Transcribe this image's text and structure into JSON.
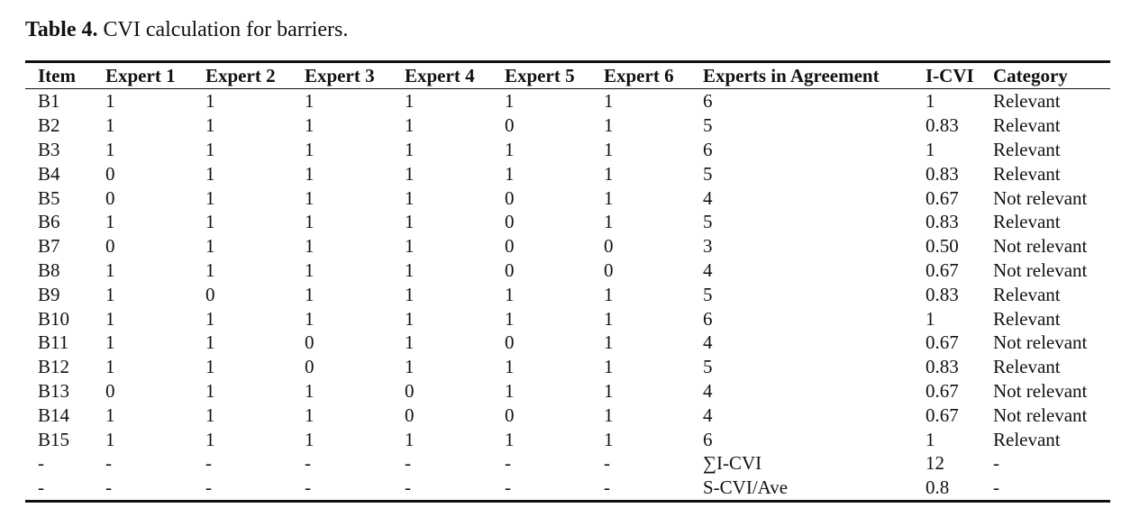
{
  "table_caption": {
    "label": "Table 4.",
    "text": "CVI calculation for barriers."
  },
  "table": {
    "headers": [
      "Item",
      "Expert 1",
      "Expert 2",
      "Expert 3",
      "Expert 4",
      "Expert 5",
      "Expert 6",
      "Experts in Agreement",
      "I-CVI",
      "Category"
    ],
    "rows": [
      [
        "B1",
        "1",
        "1",
        "1",
        "1",
        "1",
        "1",
        "6",
        "1",
        "Relevant"
      ],
      [
        "B2",
        "1",
        "1",
        "1",
        "1",
        "0",
        "1",
        "5",
        "0.83",
        "Relevant"
      ],
      [
        "B3",
        "1",
        "1",
        "1",
        "1",
        "1",
        "1",
        "6",
        "1",
        "Relevant"
      ],
      [
        "B4",
        "0",
        "1",
        "1",
        "1",
        "1",
        "1",
        "5",
        "0.83",
        "Relevant"
      ],
      [
        "B5",
        "0",
        "1",
        "1",
        "1",
        "0",
        "1",
        "4",
        "0.67",
        "Not relevant"
      ],
      [
        "B6",
        "1",
        "1",
        "1",
        "1",
        "0",
        "1",
        "5",
        "0.83",
        "Relevant"
      ],
      [
        "B7",
        "0",
        "1",
        "1",
        "1",
        "0",
        "0",
        "3",
        "0.50",
        "Not relevant"
      ],
      [
        "B8",
        "1",
        "1",
        "1",
        "1",
        "0",
        "0",
        "4",
        "0.67",
        "Not relevant"
      ],
      [
        "B9",
        "1",
        "0",
        "1",
        "1",
        "1",
        "1",
        "5",
        "0.83",
        "Relevant"
      ],
      [
        "B10",
        "1",
        "1",
        "1",
        "1",
        "1",
        "1",
        "6",
        "1",
        "Relevant"
      ],
      [
        "B11",
        "1",
        "1",
        "0",
        "1",
        "0",
        "1",
        "4",
        "0.67",
        "Not relevant"
      ],
      [
        "B12",
        "1",
        "1",
        "0",
        "1",
        "1",
        "1",
        "5",
        "0.83",
        "Relevant"
      ],
      [
        "B13",
        "0",
        "1",
        "1",
        "0",
        "1",
        "1",
        "4",
        "0.67",
        "Not relevant"
      ],
      [
        "B14",
        "1",
        "1",
        "1",
        "0",
        "0",
        "1",
        "4",
        "0.67",
        "Not relevant"
      ],
      [
        "B15",
        "1",
        "1",
        "1",
        "1",
        "1",
        "1",
        "6",
        "1",
        "Relevant"
      ],
      [
        "-",
        "-",
        "-",
        "-",
        "-",
        "-",
        "-",
        "∑I-CVI",
        "12",
        "-"
      ],
      [
        "-",
        "-",
        "-",
        "-",
        "-",
        "-",
        "-",
        "S-CVI/Ave",
        "0.8",
        "-"
      ]
    ]
  }
}
